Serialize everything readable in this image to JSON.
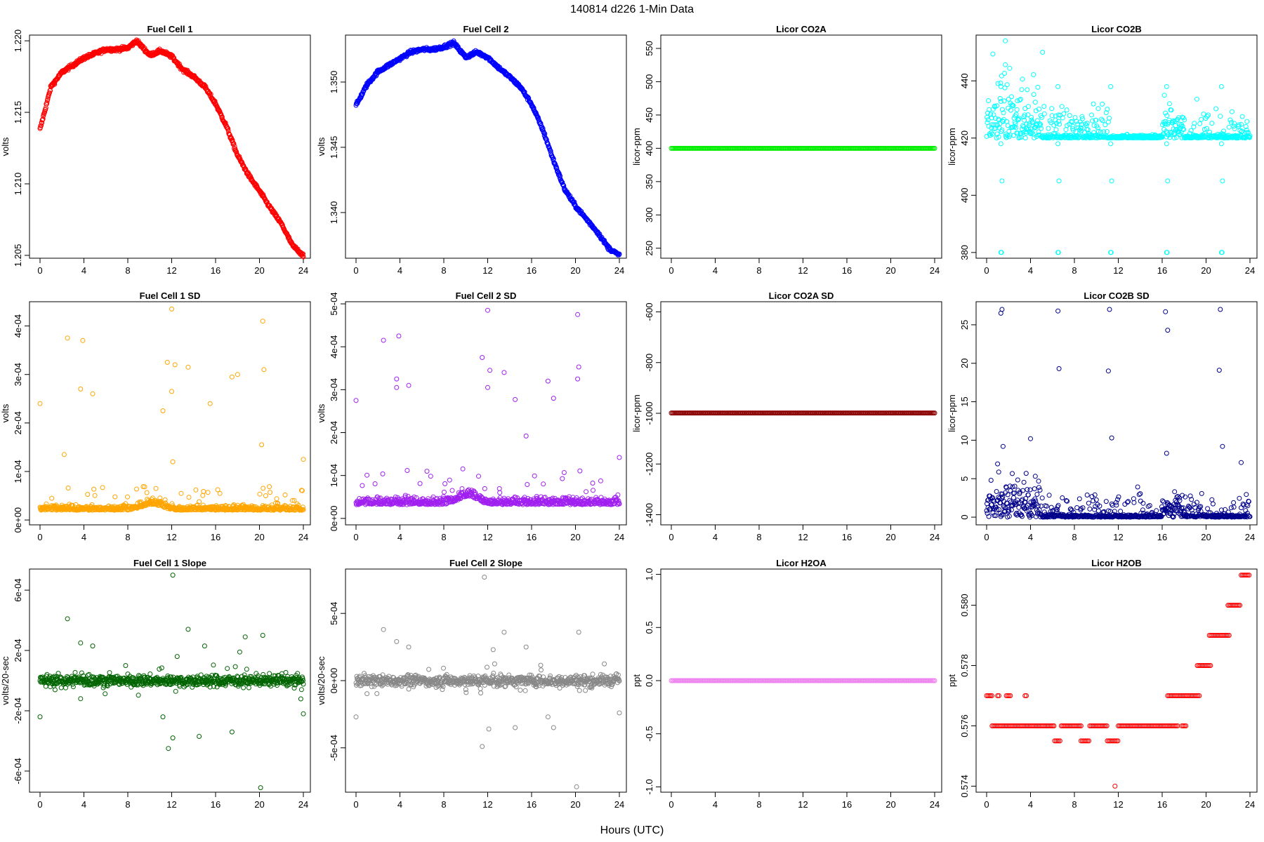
{
  "figure": {
    "suptitle": "140814   d226   1-Min Data",
    "xlabel": "Hours (UTC)"
  },
  "chart_data": [
    {
      "type": "scatter",
      "title": "Fuel Cell 1",
      "ylabel": "volts",
      "color": "#ff0000",
      "xlim": [
        0,
        24
      ],
      "xticks": [
        0,
        4,
        8,
        12,
        16,
        20,
        24
      ],
      "ylim": [
        1.2048,
        1.2204
      ],
      "yticks": [
        1.205,
        1.21,
        1.215,
        1.22
      ],
      "ytick_labels": [
        "1.205",
        "1.210",
        "1.215",
        "1.220"
      ],
      "pattern": "smooth",
      "points": [
        [
          0,
          1.2138
        ],
        [
          1,
          1.2168
        ],
        [
          2,
          1.2178
        ],
        [
          3,
          1.2183
        ],
        [
          4,
          1.2188
        ],
        [
          5,
          1.2191
        ],
        [
          6,
          1.2194
        ],
        [
          7,
          1.2194
        ],
        [
          8,
          1.2195
        ],
        [
          8.8,
          1.22
        ],
        [
          10,
          1.219
        ],
        [
          11,
          1.2193
        ],
        [
          12,
          1.2189
        ],
        [
          13,
          1.218
        ],
        [
          14,
          1.2175
        ],
        [
          15,
          1.2168
        ],
        [
          16,
          1.2156
        ],
        [
          17,
          1.214
        ],
        [
          18,
          1.212
        ],
        [
          19,
          1.2106
        ],
        [
          20,
          1.2095
        ],
        [
          21,
          1.2083
        ],
        [
          22,
          1.2072
        ],
        [
          23,
          1.2057
        ],
        [
          24,
          1.205
        ]
      ]
    },
    {
      "type": "scatter",
      "title": "Fuel Cell 2",
      "ylabel": "volts",
      "color": "#0000ff",
      "xlim": [
        0,
        24
      ],
      "xticks": [
        0,
        4,
        8,
        12,
        16,
        20,
        24
      ],
      "ylim": [
        1.3365,
        1.3536
      ],
      "yticks": [
        1.34,
        1.345,
        1.35
      ],
      "ytick_labels": [
        "1.340",
        "1.345",
        "1.350"
      ],
      "pattern": "smooth",
      "points": [
        [
          0,
          1.3482
        ],
        [
          1,
          1.3498
        ],
        [
          2,
          1.3508
        ],
        [
          3,
          1.3513
        ],
        [
          4,
          1.3518
        ],
        [
          5,
          1.3523
        ],
        [
          6,
          1.3525
        ],
        [
          7,
          1.3525
        ],
        [
          8,
          1.3527
        ],
        [
          8.9,
          1.353
        ],
        [
          10,
          1.3519
        ],
        [
          11,
          1.3523
        ],
        [
          12,
          1.3519
        ],
        [
          13,
          1.3511
        ],
        [
          14,
          1.3504
        ],
        [
          15,
          1.3496
        ],
        [
          16,
          1.3483
        ],
        [
          17,
          1.3464
        ],
        [
          18,
          1.344
        ],
        [
          19,
          1.3418
        ],
        [
          20,
          1.3405
        ],
        [
          21,
          1.3395
        ],
        [
          22,
          1.3385
        ],
        [
          23,
          1.3373
        ],
        [
          24,
          1.3367
        ]
      ]
    },
    {
      "type": "scatter",
      "title": "Licor CO2A",
      "ylabel": "licor-ppm",
      "color": "#00ee00",
      "xlim": [
        0,
        24
      ],
      "xticks": [
        0,
        4,
        8,
        12,
        16,
        20,
        24
      ],
      "ylim": [
        235,
        570
      ],
      "yticks": [
        250,
        300,
        350,
        400,
        450,
        500,
        550
      ],
      "ytick_labels": [
        "250",
        "300",
        "350",
        "400",
        "450",
        "500",
        "550"
      ],
      "pattern": "constant",
      "value": 400
    },
    {
      "type": "scatter",
      "title": "Licor CO2B",
      "ylabel": "licor-ppm",
      "color": "#00ffff",
      "xlim": [
        0,
        24
      ],
      "xticks": [
        0,
        4,
        8,
        12,
        16,
        20,
        24
      ],
      "ylim": [
        378,
        456
      ],
      "yticks": [
        380,
        400,
        420,
        440
      ],
      "ytick_labels": [
        "380",
        "400",
        "420",
        "440"
      ],
      "pattern": "co2b",
      "baseline": 420,
      "outlier_high": 454,
      "outlier_low": 380
    },
    {
      "type": "scatter",
      "title": "Fuel Cell 1 SD",
      "ylabel": "volts",
      "color": "#ffa500",
      "xlim": [
        0,
        24
      ],
      "xticks": [
        0,
        4,
        8,
        12,
        16,
        20,
        24
      ],
      "ylim": [
        -1e-05,
        0.00045
      ],
      "yticks": [
        0,
        0.0001,
        0.0002,
        0.0003,
        0.0004
      ],
      "ytick_labels": [
        "0e+00",
        "1e-04",
        "2e-04",
        "3e-04",
        "4e-04"
      ],
      "pattern": "noise",
      "baseline": 2e-05,
      "outliers": [
        [
          0,
          0.00024
        ],
        [
          2.2,
          0.000135
        ],
        [
          2.5,
          0.000375
        ],
        [
          3.7,
          0.00027
        ],
        [
          3.9,
          0.00037
        ],
        [
          4.8,
          0.00026
        ],
        [
          11.2,
          0.000225
        ],
        [
          11.6,
          0.000325
        ],
        [
          12,
          0.000435
        ],
        [
          12.3,
          0.00032
        ],
        [
          12,
          0.000265
        ],
        [
          12.1,
          0.00012
        ],
        [
          13.5,
          0.000315
        ],
        [
          15.5,
          0.00024
        ],
        [
          17.5,
          0.000295
        ],
        [
          18,
          0.0003
        ],
        [
          20.3,
          0.00041
        ],
        [
          20.4,
          0.00031
        ],
        [
          20.2,
          0.000155
        ],
        [
          24,
          0.000125
        ]
      ]
    },
    {
      "type": "scatter",
      "title": "Fuel Cell 2 SD",
      "ylabel": "volts",
      "color": "#a020f0",
      "xlim": [
        0,
        24
      ],
      "xticks": [
        0,
        4,
        8,
        12,
        16,
        20,
        24
      ],
      "ylim": [
        -1.5e-05,
        0.000505
      ],
      "yticks": [
        0,
        0.0001,
        0.0002,
        0.0003,
        0.0004,
        0.0005
      ],
      "ytick_labels": [
        "0e+00",
        "1e-04",
        "2e-04",
        "3e-04",
        "4e-04",
        "5e-04"
      ],
      "pattern": "noise",
      "baseline": 3.2e-05,
      "outliers": [
        [
          0,
          0.000275
        ],
        [
          2.5,
          0.000415
        ],
        [
          3.7,
          0.000325
        ],
        [
          3.9,
          0.000425
        ],
        [
          3.7,
          0.000305
        ],
        [
          4.8,
          0.00031
        ],
        [
          11.5,
          0.000375
        ],
        [
          12,
          0.000485
        ],
        [
          12.2,
          0.000345
        ],
        [
          12,
          0.000305
        ],
        [
          13.5,
          0.00034
        ],
        [
          14.5,
          0.000277
        ],
        [
          15.5,
          0.000192
        ],
        [
          17.5,
          0.00032
        ],
        [
          18,
          0.00028
        ],
        [
          20.2,
          0.000475
        ],
        [
          20.3,
          0.000353
        ],
        [
          20.2,
          0.000325
        ],
        [
          24,
          0.000142
        ]
      ]
    },
    {
      "type": "scatter",
      "title": "Licor CO2A SD",
      "ylabel": "licor-ppm",
      "color": "#8b0000",
      "xlim": [
        0,
        24
      ],
      "xticks": [
        0,
        4,
        8,
        12,
        16,
        20,
        24
      ],
      "ylim": [
        -1440,
        -560
      ],
      "yticks": [
        -1400,
        -1200,
        -1000,
        -800,
        -600
      ],
      "ytick_labels": [
        "-1400",
        "-1200",
        "-1000",
        "-800",
        "-600"
      ],
      "pattern": "constant",
      "value": -999
    },
    {
      "type": "scatter",
      "title": "Licor CO2B SD",
      "ylabel": "licor-ppm",
      "color": "#00008b",
      "xlim": [
        0,
        24
      ],
      "xticks": [
        0,
        4,
        8,
        12,
        16,
        20,
        24
      ],
      "ylim": [
        -1,
        28
      ],
      "yticks": [
        0,
        5,
        10,
        15,
        20,
        25
      ],
      "ytick_labels": [
        "0",
        "5",
        "10",
        "15",
        "20",
        "25"
      ],
      "pattern": "co2bsd",
      "outliers": [
        [
          1.3,
          26.5
        ],
        [
          1.4,
          27
        ],
        [
          6.5,
          26.8
        ],
        [
          6.6,
          19.3
        ],
        [
          11.2,
          27
        ],
        [
          11.1,
          19
        ],
        [
          11.4,
          10.3
        ],
        [
          16.3,
          26.7
        ],
        [
          16.5,
          24.3
        ],
        [
          16.4,
          8.3
        ],
        [
          21.3,
          27
        ],
        [
          21.2,
          19.1
        ],
        [
          21.5,
          9.2
        ],
        [
          23.2,
          7.1
        ],
        [
          4,
          10.2
        ],
        [
          1.5,
          9.2
        ]
      ]
    },
    {
      "type": "scatter",
      "title": "Fuel Cell 1 Slope",
      "ylabel": "volts/20-sec",
      "color": "#006400",
      "xlim": [
        0,
        24
      ],
      "xticks": [
        0,
        4,
        8,
        12,
        16,
        20,
        24
      ],
      "ylim": [
        -0.00074,
        0.00074
      ],
      "yticks": [
        -0.0006,
        -0.0002,
        0.0002,
        0.0006
      ],
      "ytick_labels": [
        "-6e-04",
        "-2e-04",
        "2e-04",
        "6e-04"
      ],
      "pattern": "slope",
      "outliers": [
        [
          0,
          -0.00024
        ],
        [
          2.5,
          0.00041
        ],
        [
          3.7,
          0.00025
        ],
        [
          4.8,
          0.00023
        ],
        [
          3.7,
          -0.00012
        ],
        [
          11.2,
          -0.00024
        ],
        [
          11.7,
          -0.00045
        ],
        [
          12.1,
          0.0007
        ],
        [
          12.1,
          -0.00038
        ],
        [
          12.5,
          0.00016
        ],
        [
          13.5,
          0.00034
        ],
        [
          14.5,
          -0.00037
        ],
        [
          15,
          0.00023
        ],
        [
          17.5,
          -0.00034
        ],
        [
          18.2,
          0.00019
        ],
        [
          18.7,
          0.00029
        ],
        [
          20.3,
          0.0003
        ],
        [
          20.1,
          -0.00071
        ],
        [
          24,
          -0.00022
        ]
      ]
    },
    {
      "type": "scatter",
      "title": "Fuel Cell 2 Slope",
      "ylabel": "volts/20-sec",
      "color": "#888888",
      "xlim": [
        0,
        24
      ],
      "xticks": [
        0,
        4,
        8,
        12,
        16,
        20,
        24
      ],
      "ylim": [
        -0.00083,
        0.00083
      ],
      "yticks": [
        -0.0005,
        0,
        0.0005
      ],
      "ytick_labels": [
        "-5e-04",
        "0e+00",
        "5e-04"
      ],
      "pattern": "slope",
      "outliers": [
        [
          0,
          -0.00027
        ],
        [
          2.5,
          0.00038
        ],
        [
          3.7,
          0.00029
        ],
        [
          4.8,
          0.00025
        ],
        [
          11.5,
          -0.00049
        ],
        [
          11.7,
          0.00077
        ],
        [
          12.1,
          -0.00036
        ],
        [
          12.5,
          0.00023
        ],
        [
          13.5,
          0.00036
        ],
        [
          14.5,
          -0.00035
        ],
        [
          15.5,
          0.00025
        ],
        [
          17.5,
          -0.00027
        ],
        [
          18,
          -0.00035
        ],
        [
          20.3,
          0.00036
        ],
        [
          20.1,
          -0.00079
        ],
        [
          24,
          -0.00024
        ]
      ]
    },
    {
      "type": "scatter",
      "title": "Licor H2OA",
      "ylabel": "ppt",
      "color": "#ee82ee",
      "xlim": [
        0,
        24
      ],
      "xticks": [
        0,
        4,
        8,
        12,
        16,
        20,
        24
      ],
      "ylim": [
        -1.05,
        1.05
      ],
      "yticks": [
        -1.0,
        -0.5,
        0.0,
        0.5,
        1.0
      ],
      "ytick_labels": [
        "-1.0",
        "-0.5",
        "0.0",
        "0.5",
        "1.0"
      ],
      "pattern": "constant",
      "value": 0
    },
    {
      "type": "scatter",
      "title": "Licor H2OB",
      "ylabel": "ppt",
      "color": "#ff0000",
      "xlim": [
        0,
        24
      ],
      "xticks": [
        0,
        4,
        8,
        12,
        16,
        20,
        24
      ],
      "ylim": [
        0.5738,
        0.5812
      ],
      "yticks": [
        0.574,
        0.576,
        0.578,
        0.58
      ],
      "ytick_labels": [
        "0.574",
        "0.576",
        "0.578",
        "0.580"
      ],
      "pattern": "steps",
      "segments": [
        [
          0,
          0.5,
          0.577
        ],
        [
          0.5,
          6.2,
          0.576
        ],
        [
          6.2,
          6.8,
          0.5755
        ],
        [
          6.8,
          8.6,
          0.576
        ],
        [
          8.6,
          9.4,
          0.5755
        ],
        [
          9.4,
          11,
          0.576
        ],
        [
          11,
          12,
          0.5755
        ],
        [
          11.7,
          11.8,
          0.574
        ],
        [
          12,
          17.5,
          0.576
        ],
        [
          16.5,
          19.5,
          0.577
        ],
        [
          19.2,
          20.5,
          0.578
        ],
        [
          20.3,
          22.2,
          0.579
        ],
        [
          22,
          23.2,
          0.58
        ],
        [
          23.2,
          24,
          0.581
        ],
        [
          1,
          1.2,
          0.577
        ],
        [
          1.8,
          2.2,
          0.577
        ],
        [
          3.5,
          3.7,
          0.577
        ],
        [
          17.8,
          18.2,
          0.576
        ]
      ]
    }
  ]
}
